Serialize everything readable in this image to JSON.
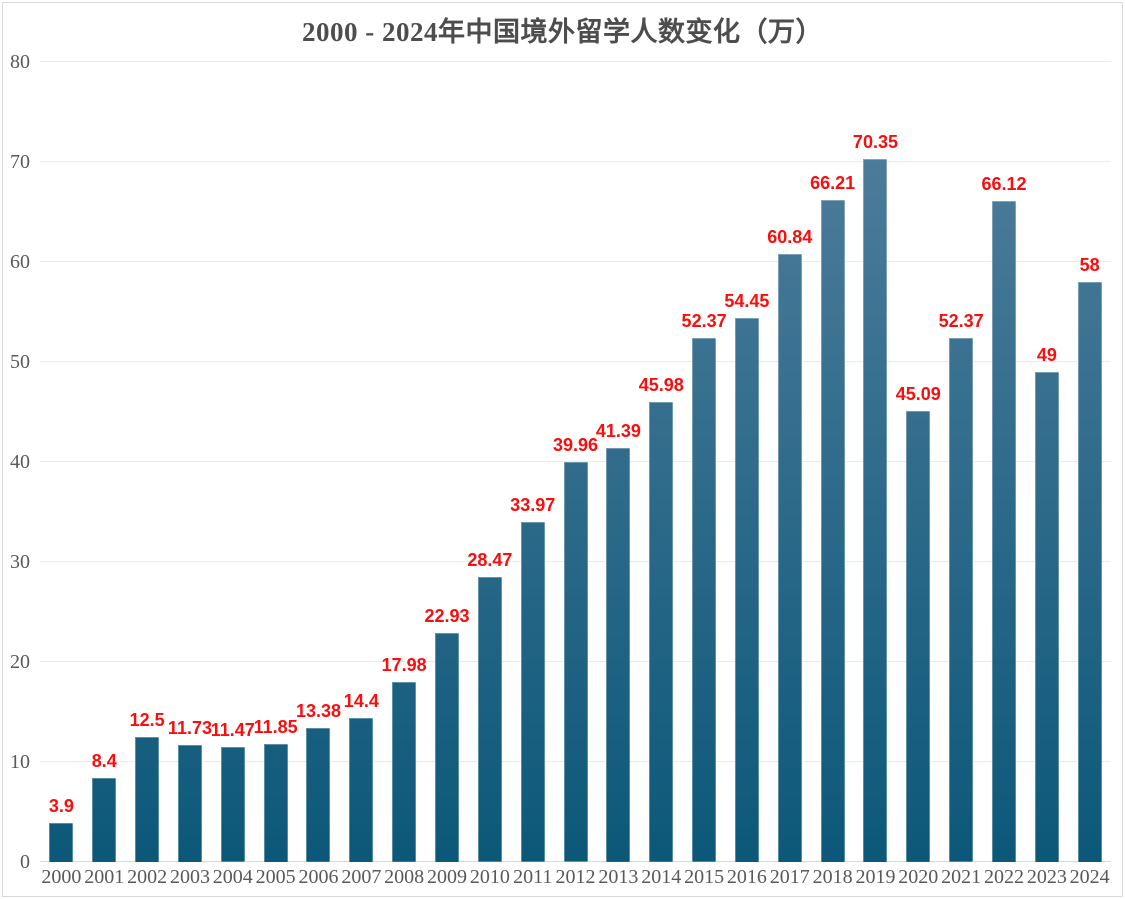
{
  "chart_data": {
    "type": "bar",
    "title": "2000 - 2024年中国境外留学人数变化（万）",
    "xlabel": "",
    "ylabel": "",
    "categories": [
      "2000",
      "2001",
      "2002",
      "2003",
      "2004",
      "2005",
      "2006",
      "2007",
      "2008",
      "2009",
      "2010",
      "2011",
      "2012",
      "2013",
      "2014",
      "2015",
      "2016",
      "2017",
      "2018",
      "2019",
      "2020",
      "2021",
      "2022",
      "2023",
      "2024"
    ],
    "values": [
      3.9,
      8.4,
      12.5,
      11.73,
      11.47,
      11.85,
      13.38,
      14.4,
      17.98,
      22.93,
      28.47,
      33.97,
      39.96,
      41.39,
      45.98,
      52.37,
      54.45,
      60.84,
      66.21,
      70.35,
      45.09,
      52.37,
      66.12,
      49,
      58
    ],
    "value_labels": [
      "3.9",
      "8.4",
      "12.5",
      "11.73",
      "11.47",
      "11.85",
      "13.38",
      "14.4",
      "17.98",
      "22.93",
      "28.47",
      "33.97",
      "39.96",
      "41.39",
      "45.98",
      "52.37",
      "54.45",
      "60.84",
      "66.21",
      "70.35",
      "45.09",
      "52.37",
      "66.12",
      "49",
      "58"
    ],
    "ylim": [
      0,
      80
    ],
    "y_ticks": [
      0,
      10,
      20,
      30,
      40,
      50,
      60,
      70,
      80
    ],
    "grid": true,
    "legend": "none",
    "colors": {
      "bar_gradient_top": "#56809e",
      "bar_gradient_bottom": "#0c5879",
      "value_label": "#fb0d0d",
      "axis_text": "#595959",
      "title_text": "#4d4d4d",
      "gridline": "#ebebeb",
      "frame_border": "#d9d9d9"
    }
  }
}
